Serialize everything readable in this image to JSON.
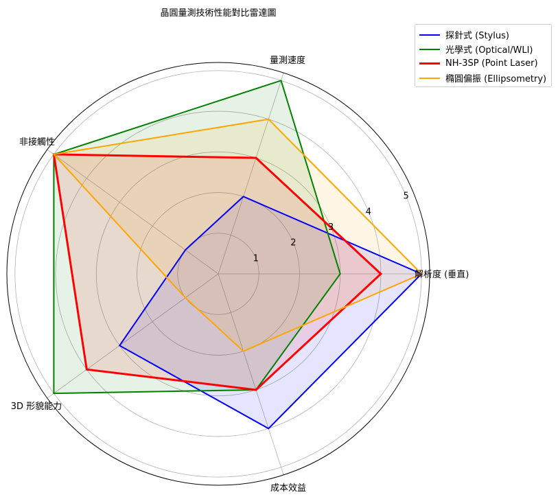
{
  "chart_data": {
    "type": "radar",
    "title": "晶圓量測技術性能對比雷達圖",
    "categories": [
      "解析度 (垂直)",
      "量測速度",
      "非接觸性",
      "3D 形貌能力",
      "成本效益"
    ],
    "rlim": [
      0,
      5
    ],
    "rticks": [
      "1",
      "2",
      "3",
      "4",
      "5"
    ],
    "grid": true,
    "legend_position": "top-right",
    "series": [
      {
        "name": "探針式 (Stylus)",
        "values": [
          5,
          2,
          1,
          3,
          4
        ],
        "color": "#0000ff",
        "fill": "#0000ff"
      },
      {
        "name": "光學式 (Optical/WLI)",
        "values": [
          3,
          5,
          5,
          5,
          3
        ],
        "color": "#008000",
        "fill": "#008000"
      },
      {
        "name": "NH-3SP (Point Laser)",
        "values": [
          4,
          3,
          5,
          4,
          3
        ],
        "color": "#ff0000",
        "fill": "#ff0000"
      },
      {
        "name": "橢圓偏振 (Ellipsometry)",
        "values": [
          5,
          4,
          5,
          1,
          2
        ],
        "color": "#ffa500",
        "fill": "#ffa500"
      }
    ]
  }
}
